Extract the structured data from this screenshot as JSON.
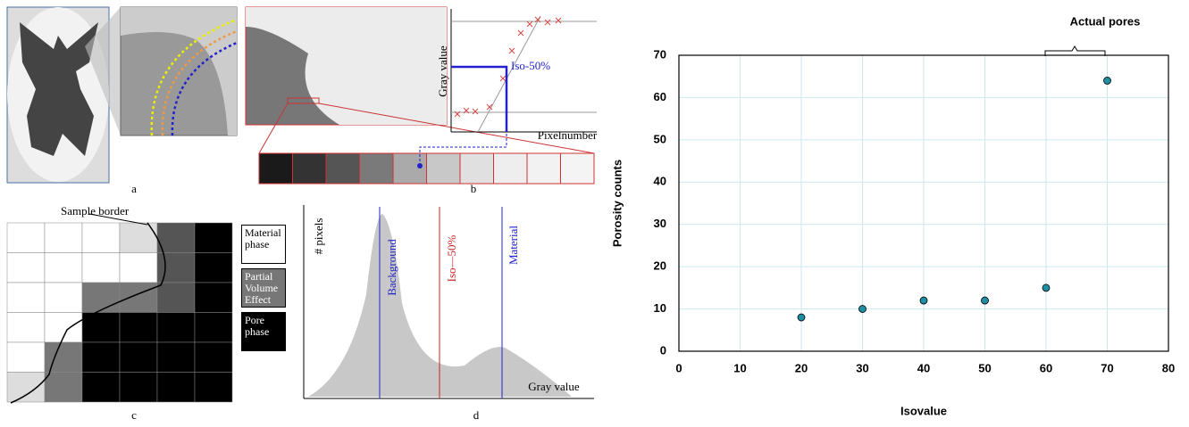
{
  "panels": {
    "a": {
      "label": "a"
    },
    "b": {
      "label": "b",
      "y_axis": "Gray value",
      "x_axis": "Pixelnumber",
      "iso": "Iso-50%"
    },
    "c": {
      "label": "c",
      "border": "Sample border",
      "legend": [
        "Material phase",
        "Partial Volume Effect",
        "Pore phase"
      ]
    },
    "d": {
      "label": "d",
      "y_axis": "# pixels",
      "x_axis": "Gray value",
      "background": "Background",
      "iso": "Iso—50%",
      "material": "Material"
    }
  },
  "chart_data": {
    "type": "scatter",
    "annotation": "Actual pores",
    "x_label": "Isovalue",
    "y_label": "Porosity counts",
    "x": [
      20,
      30,
      40,
      50,
      60,
      70
    ],
    "values": [
      8,
      10,
      12,
      12,
      15,
      64
    ],
    "color": "#1f8ea3",
    "xlim": [
      0,
      80
    ],
    "xticks": [
      0,
      10,
      20,
      30,
      40,
      50,
      60,
      70,
      80
    ],
    "ylim": [
      0,
      70
    ],
    "yticks": [
      0,
      10,
      20,
      30,
      40,
      50,
      60,
      70
    ],
    "grid": true
  }
}
